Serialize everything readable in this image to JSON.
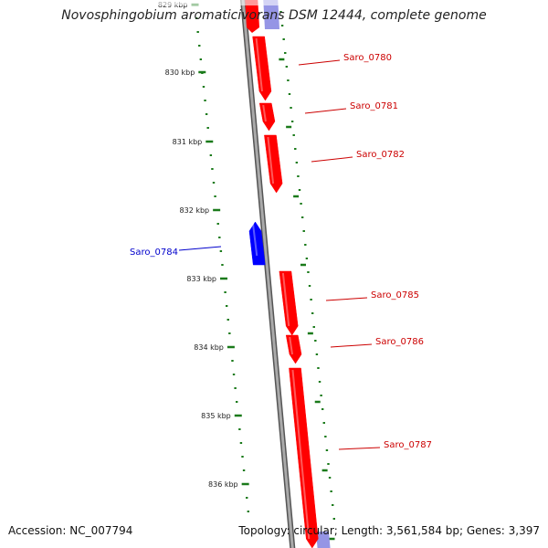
{
  "title": "Novosphingobium aromaticivorans DSM 12444, complete genome",
  "footer": {
    "accession": "Accession: NC_007794",
    "summary": "Topology: circular; Length: 3,561,584 bp; Genes: 3,397"
  },
  "colors": {
    "forward": "#ff0000",
    "reverse": "#0000ff",
    "backbone": "#888888",
    "ticks": "#1a7a1a",
    "forward_label": "#cc0000",
    "reverse_label": "#0000cc"
  },
  "ruler": {
    "unit": "kbp",
    "tick_labels": [
      "829 kbp",
      "830 kbp",
      "831 kbp",
      "832 kbp",
      "833 kbp",
      "834 kbp",
      "835 kbp",
      "836 kbp"
    ]
  },
  "genes": [
    {
      "name": "Saro_0780",
      "strand": "+"
    },
    {
      "name": "Saro_0781",
      "strand": "+"
    },
    {
      "name": "Saro_0782",
      "strand": "+"
    },
    {
      "name": "Saro_0784",
      "strand": "-"
    },
    {
      "name": "Saro_0785",
      "strand": "+"
    },
    {
      "name": "Saro_0786",
      "strand": "+"
    },
    {
      "name": "Saro_0787",
      "strand": "+"
    }
  ]
}
